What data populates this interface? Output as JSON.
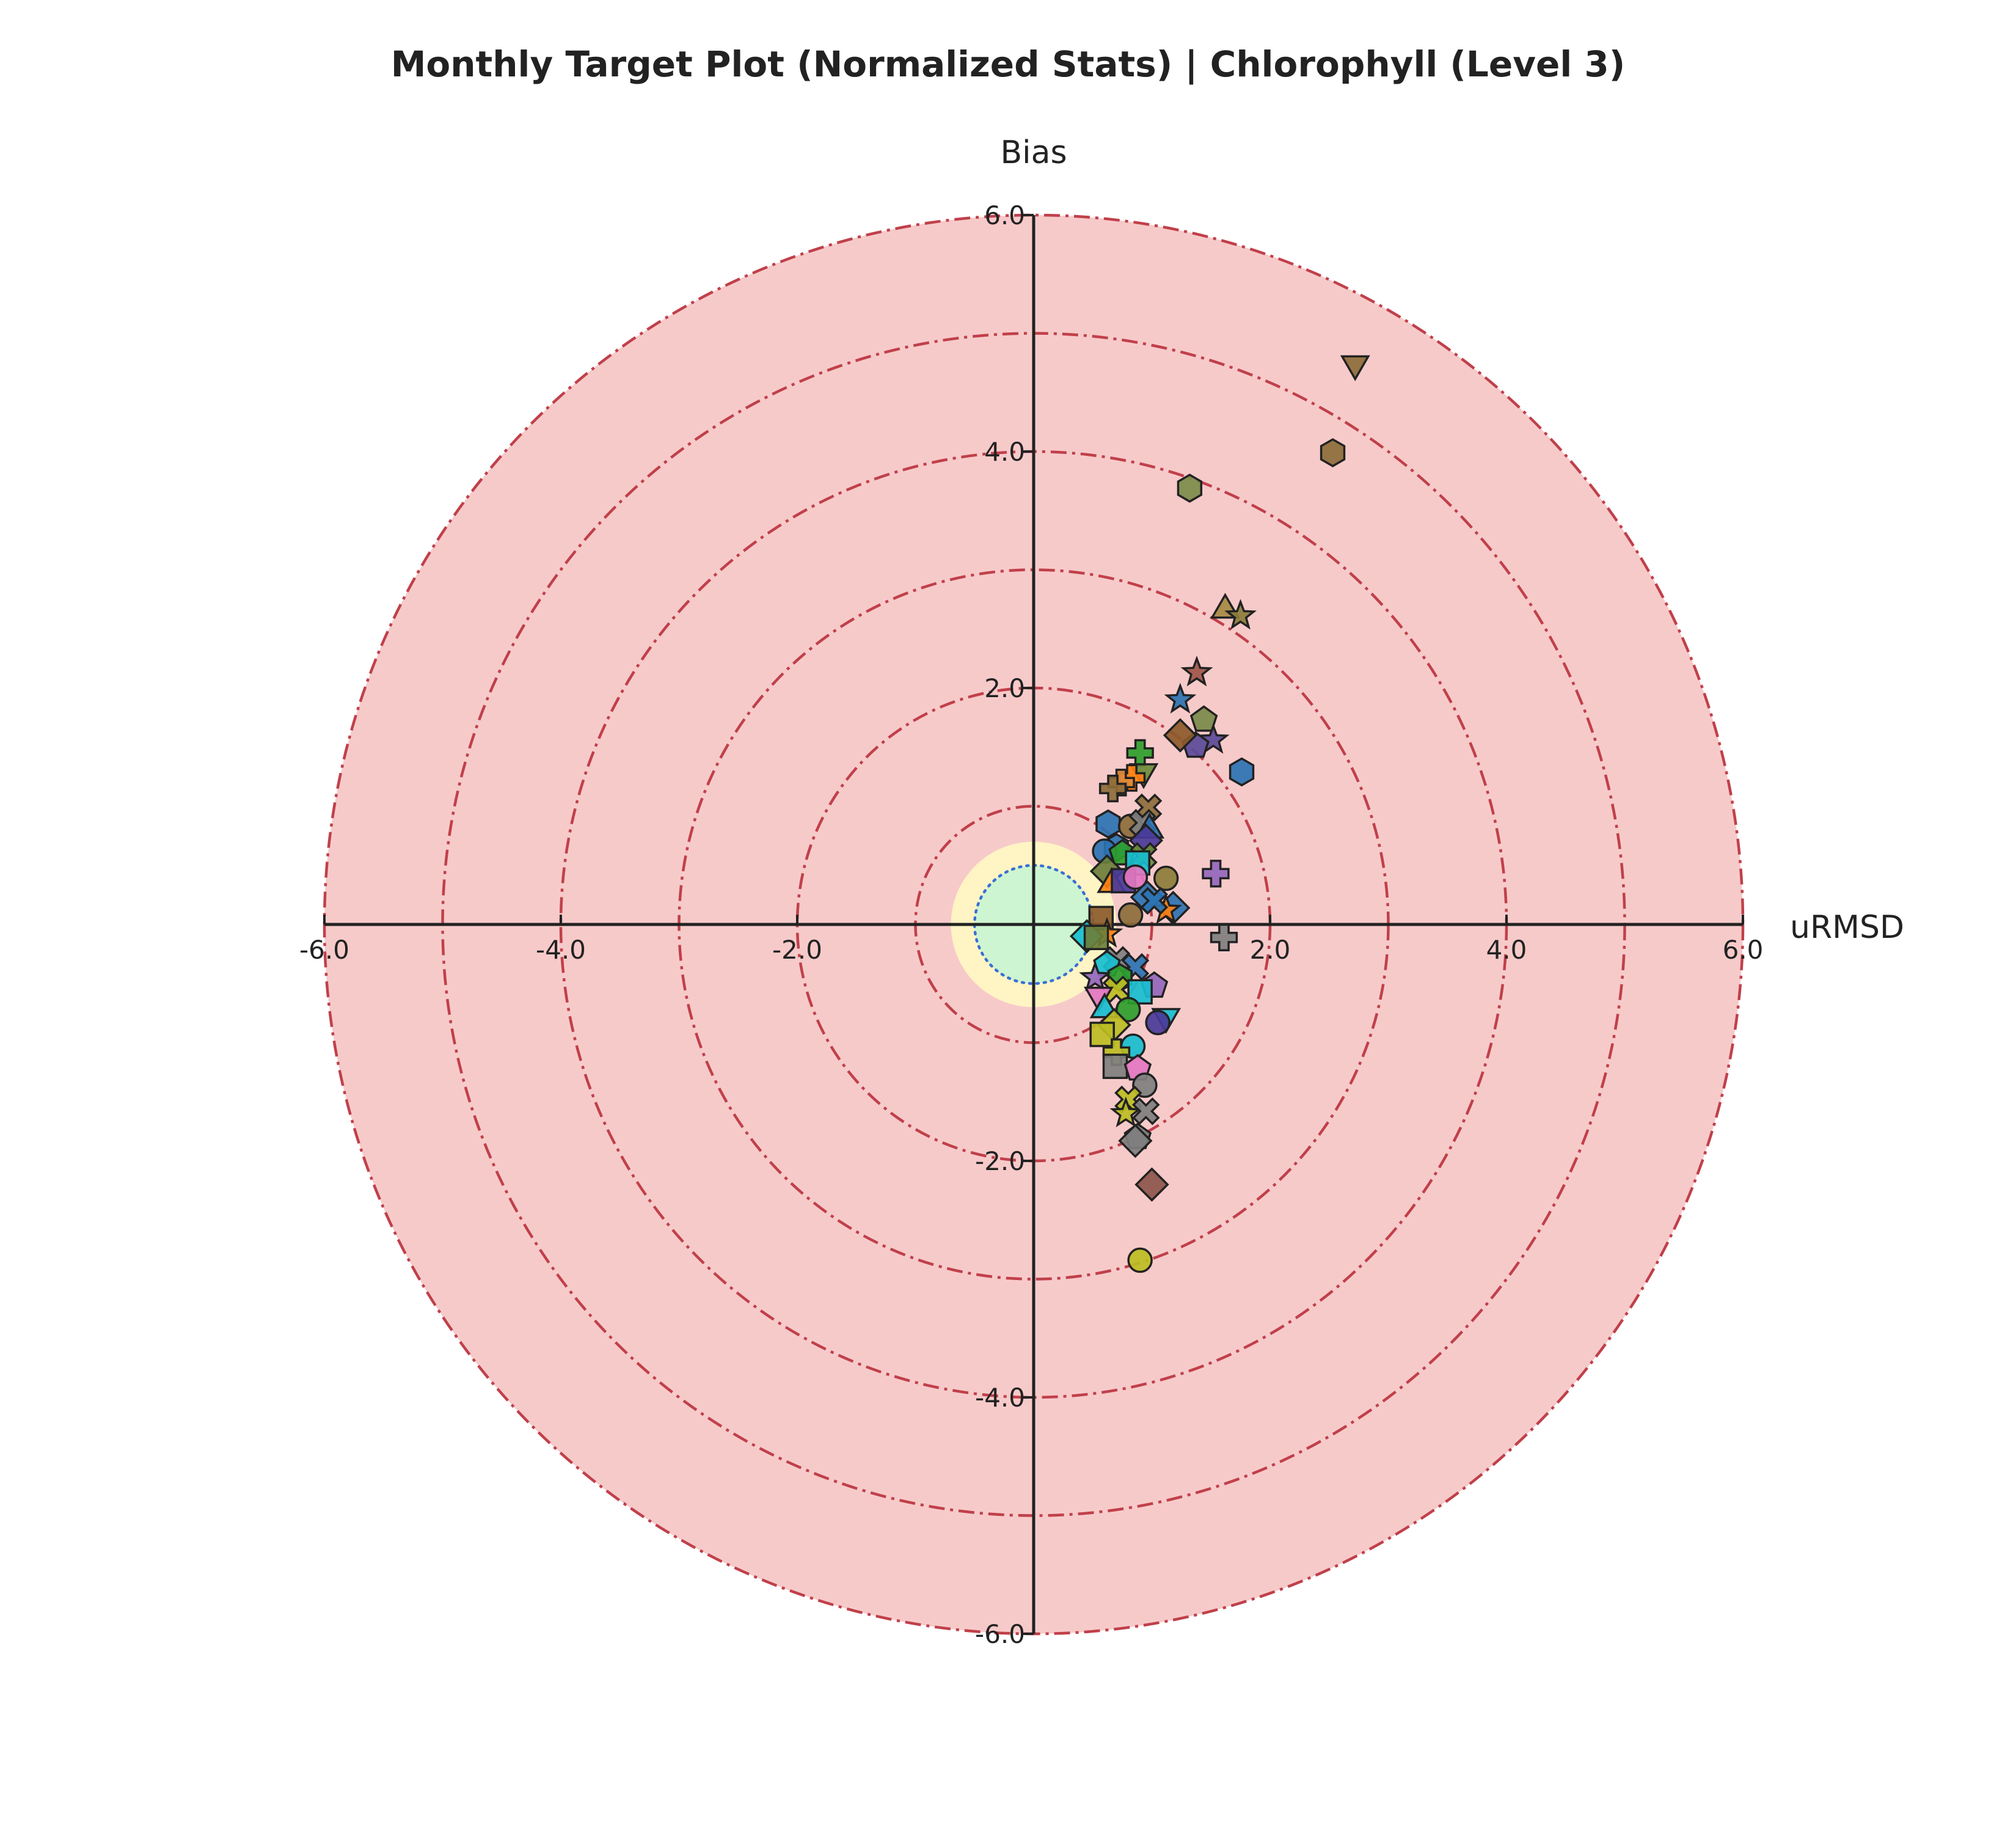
{
  "chart_data": {
    "type": "scatter",
    "title": "Monthly Target Plot (Normalized Stats) | Chlorophyll (Level 3)",
    "xlabel": "uRMSD",
    "ylabel": "Bias",
    "xlim": [
      -6,
      6
    ],
    "ylim": [
      -6,
      6
    ],
    "x_ticks": [
      "-6.0",
      "-4.0",
      "-2.0",
      "2.0",
      "4.0",
      "6.0"
    ],
    "x_tick_values": [
      -6,
      -4,
      -2,
      2,
      4,
      6
    ],
    "y_ticks": [
      "6.0",
      "4.0",
      "2.0",
      "-2.0",
      "-4.0",
      "-6.0"
    ],
    "y_tick_values": [
      6,
      4,
      2,
      -2,
      -4,
      -6
    ],
    "zones": [
      {
        "radius": 0.7,
        "color": "#fff4c4"
      },
      {
        "radius": 0.5,
        "color": "#cdf5d1"
      }
    ],
    "outer_fill": "#f7caca",
    "ring_color": "#c0404a",
    "dashed_rings": [
      1,
      2,
      3,
      4,
      5,
      6
    ],
    "reference_circle": {
      "radius": 0.5,
      "color": "#3b6fd4"
    },
    "points": [
      {
        "x": 2.72,
        "y": 4.72,
        "marker": "tri-down",
        "color": "#8c6d3a"
      },
      {
        "x": 2.53,
        "y": 3.99,
        "marker": "hexagon",
        "color": "#8c6d3a"
      },
      {
        "x": 1.32,
        "y": 3.69,
        "marker": "hexagon",
        "color": "#7c8c4a"
      },
      {
        "x": 1.62,
        "y": 2.68,
        "marker": "triangle",
        "color": "#a58a44"
      },
      {
        "x": 1.75,
        "y": 2.61,
        "marker": "star",
        "color": "#8c7d3a"
      },
      {
        "x": 1.38,
        "y": 2.13,
        "marker": "star",
        "color": "#a0564a"
      },
      {
        "x": 1.24,
        "y": 1.9,
        "marker": "star",
        "color": "#2b73b3"
      },
      {
        "x": 1.44,
        "y": 1.73,
        "marker": "pentagon",
        "color": "#7a8a4a"
      },
      {
        "x": 1.52,
        "y": 1.56,
        "marker": "star",
        "color": "#5b4a99"
      },
      {
        "x": 1.37,
        "y": 1.51,
        "marker": "pentagon",
        "color": "#5b4a99"
      },
      {
        "x": 1.24,
        "y": 1.6,
        "marker": "diamond",
        "color": "#8c5a2a"
      },
      {
        "x": 1.76,
        "y": 1.29,
        "marker": "hexagon",
        "color": "#2b73b3"
      },
      {
        "x": 0.9,
        "y": 1.45,
        "marker": "plus",
        "color": "#2ca02c"
      },
      {
        "x": 0.93,
        "y": 1.27,
        "marker": "tri-down",
        "color": "#6b8c3a"
      },
      {
        "x": 0.83,
        "y": 1.24,
        "marker": "plus",
        "color": "#ff7f0e"
      },
      {
        "x": 0.74,
        "y": 1.2,
        "marker": "plus",
        "color": "#e08a3a"
      },
      {
        "x": 0.67,
        "y": 1.15,
        "marker": "plus",
        "color": "#8c6d3a"
      },
      {
        "x": 0.97,
        "y": 0.99,
        "marker": "cross",
        "color": "#8c6d3a"
      },
      {
        "x": 0.63,
        "y": 0.85,
        "marker": "hexagon",
        "color": "#2b73b3"
      },
      {
        "x": 0.82,
        "y": 0.83,
        "marker": "circle",
        "color": "#8c6d3a"
      },
      {
        "x": 0.92,
        "y": 0.86,
        "marker": "cross",
        "color": "#7f7f7f"
      },
      {
        "x": 0.98,
        "y": 0.82,
        "marker": "triangle",
        "color": "#2b73b3"
      },
      {
        "x": 0.95,
        "y": 0.71,
        "marker": "diamond",
        "color": "#4a3a99"
      },
      {
        "x": 0.7,
        "y": 0.65,
        "marker": "hexagon",
        "color": "#2b73b3"
      },
      {
        "x": 0.6,
        "y": 0.62,
        "marker": "circle",
        "color": "#2b73b3"
      },
      {
        "x": 0.75,
        "y": 0.6,
        "marker": "pentagon",
        "color": "#2ca02c"
      },
      {
        "x": 0.93,
        "y": 0.58,
        "marker": "cross",
        "color": "#6b8c3a"
      },
      {
        "x": 0.88,
        "y": 0.52,
        "marker": "square",
        "color": "#17becf"
      },
      {
        "x": 0.62,
        "y": 0.45,
        "marker": "diamond",
        "color": "#6b7f3a"
      },
      {
        "x": 0.66,
        "y": 0.36,
        "marker": "triangle",
        "color": "#ff7f0e"
      },
      {
        "x": 0.76,
        "y": 0.37,
        "marker": "square",
        "color": "#4a3a99"
      },
      {
        "x": 0.86,
        "y": 0.4,
        "marker": "circle",
        "color": "#e377c2"
      },
      {
        "x": 1.12,
        "y": 0.39,
        "marker": "circle",
        "color": "#8c7d3a"
      },
      {
        "x": 1.54,
        "y": 0.43,
        "marker": "plus",
        "color": "#9467bd"
      },
      {
        "x": 0.96,
        "y": 0.23,
        "marker": "diamond",
        "color": "#2b73b3"
      },
      {
        "x": 1.18,
        "y": 0.14,
        "marker": "diamond",
        "color": "#2b73b3"
      },
      {
        "x": 1.12,
        "y": 0.12,
        "marker": "star",
        "color": "#ff7f0e"
      },
      {
        "x": 1.02,
        "y": 0.2,
        "marker": "cross",
        "color": "#2b73b3"
      },
      {
        "x": 0.82,
        "y": 0.08,
        "marker": "circle",
        "color": "#8c6d3a"
      },
      {
        "x": 0.57,
        "y": 0.05,
        "marker": "square",
        "color": "#8c5a2a"
      },
      {
        "x": 0.62,
        "y": -0.08,
        "marker": "star",
        "color": "#ff7f0e"
      },
      {
        "x": 0.45,
        "y": -0.1,
        "marker": "diamond",
        "color": "#17becf"
      },
      {
        "x": 0.53,
        "y": -0.11,
        "marker": "square",
        "color": "#6b7f3a"
      },
      {
        "x": 1.61,
        "y": -0.11,
        "marker": "plus",
        "color": "#7f7f7f"
      },
      {
        "x": 0.7,
        "y": -0.3,
        "marker": "cross",
        "color": "#7f7f7f"
      },
      {
        "x": 0.62,
        "y": -0.34,
        "marker": "pentagon",
        "color": "#17becf"
      },
      {
        "x": 0.86,
        "y": -0.36,
        "marker": "cross",
        "color": "#2b73b3"
      },
      {
        "x": 0.73,
        "y": -0.45,
        "marker": "hexagon",
        "color": "#2ca02c"
      },
      {
        "x": 0.52,
        "y": -0.45,
        "marker": "star",
        "color": "#9467bd"
      },
      {
        "x": 1.02,
        "y": -0.52,
        "marker": "pentagon",
        "color": "#9467bd"
      },
      {
        "x": 0.7,
        "y": -0.55,
        "marker": "cross",
        "color": "#bcbd22"
      },
      {
        "x": 0.9,
        "y": -0.57,
        "marker": "square",
        "color": "#17becf"
      },
      {
        "x": 0.55,
        "y": -0.62,
        "marker": "tri-down",
        "color": "#e377c2"
      },
      {
        "x": 0.6,
        "y": -0.7,
        "marker": "triangle",
        "color": "#17becf"
      },
      {
        "x": 0.8,
        "y": -0.72,
        "marker": "circle",
        "color": "#2ca02c"
      },
      {
        "x": 1.12,
        "y": -0.8,
        "marker": "tri-down",
        "color": "#17becf"
      },
      {
        "x": 1.05,
        "y": -0.83,
        "marker": "circle",
        "color": "#4a3a99"
      },
      {
        "x": 0.68,
        "y": -0.85,
        "marker": "diamond",
        "color": "#bcbd22"
      },
      {
        "x": 0.58,
        "y": -0.93,
        "marker": "square",
        "color": "#bcbd22"
      },
      {
        "x": 0.84,
        "y": -1.03,
        "marker": "circle",
        "color": "#17becf"
      },
      {
        "x": 0.7,
        "y": -1.08,
        "marker": "plus",
        "color": "#bcbd22"
      },
      {
        "x": 0.69,
        "y": -1.2,
        "marker": "square",
        "color": "#7f7f7f"
      },
      {
        "x": 0.88,
        "y": -1.22,
        "marker": "pentagon",
        "color": "#e377c2"
      },
      {
        "x": 0.94,
        "y": -1.36,
        "marker": "circle",
        "color": "#7f7f7f"
      },
      {
        "x": 0.8,
        "y": -1.48,
        "marker": "cross",
        "color": "#bcbd22"
      },
      {
        "x": 0.78,
        "y": -1.6,
        "marker": "star",
        "color": "#bcbd22"
      },
      {
        "x": 0.95,
        "y": -1.58,
        "marker": "cross",
        "color": "#7f7f7f"
      },
      {
        "x": 0.88,
        "y": -1.8,
        "marker": "pentagon",
        "color": "#7f7f7f"
      },
      {
        "x": 0.86,
        "y": -1.83,
        "marker": "diamond",
        "color": "#7f7f7f"
      },
      {
        "x": 1.0,
        "y": -2.2,
        "marker": "diamond",
        "color": "#8c564b"
      },
      {
        "x": 0.9,
        "y": -2.84,
        "marker": "circle",
        "color": "#bcbd22"
      }
    ]
  }
}
